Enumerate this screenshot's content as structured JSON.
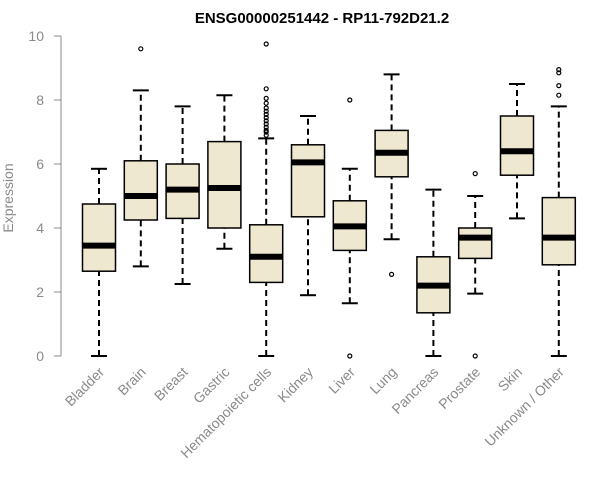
{
  "chart_data": {
    "type": "boxplot",
    "title": "ENSG00000251442 - RP11-792D21.2",
    "xlabel": "",
    "ylabel": "Expression",
    "ylim": [
      0,
      10
    ],
    "yticks": [
      0,
      2,
      4,
      6,
      8,
      10
    ],
    "grid": false,
    "box_fill": "#efe8d0",
    "categories": [
      "Bladder",
      "Brain",
      "Breast",
      "Gastric",
      "Hematopoietic cells",
      "Kidney",
      "Liver",
      "Lung",
      "Pancreas",
      "Prostate",
      "Skin",
      "Unknown / Other"
    ],
    "boxes": [
      {
        "whisker_low": 0.0,
        "q1": 2.65,
        "median": 3.45,
        "q3": 4.75,
        "whisker_high": 5.85,
        "outliers": []
      },
      {
        "whisker_low": 2.8,
        "q1": 4.25,
        "median": 5.0,
        "q3": 6.1,
        "whisker_high": 8.3,
        "outliers": [
          9.6
        ]
      },
      {
        "whisker_low": 2.25,
        "q1": 4.3,
        "median": 5.2,
        "q3": 6.0,
        "whisker_high": 7.8,
        "outliers": []
      },
      {
        "whisker_low": 3.35,
        "q1": 4.0,
        "median": 5.25,
        "q3": 6.7,
        "whisker_high": 8.15,
        "outliers": []
      },
      {
        "whisker_low": 0.0,
        "q1": 2.3,
        "median": 3.1,
        "q3": 4.1,
        "whisker_high": 6.8,
        "outliers": [
          6.9,
          7.0,
          7.05,
          7.15,
          7.25,
          7.35,
          7.45,
          7.55,
          7.65,
          7.75,
          7.9,
          8.05,
          8.35,
          9.75
        ]
      },
      {
        "whisker_low": 1.9,
        "q1": 4.35,
        "median": 6.05,
        "q3": 6.6,
        "whisker_high": 7.5,
        "outliers": []
      },
      {
        "whisker_low": 1.65,
        "q1": 3.3,
        "median": 4.05,
        "q3": 4.85,
        "whisker_high": 5.85,
        "outliers": [
          0.0,
          8.0
        ]
      },
      {
        "whisker_low": 3.65,
        "q1": 5.6,
        "median": 6.35,
        "q3": 7.05,
        "whisker_high": 8.8,
        "outliers": [
          2.55
        ]
      },
      {
        "whisker_low": 0.0,
        "q1": 1.35,
        "median": 2.2,
        "q3": 3.1,
        "whisker_high": 5.2,
        "outliers": []
      },
      {
        "whisker_low": 1.95,
        "q1": 3.05,
        "median": 3.7,
        "q3": 4.0,
        "whisker_high": 5.0,
        "outliers": [
          0.0,
          5.7
        ]
      },
      {
        "whisker_low": 4.3,
        "q1": 5.65,
        "median": 6.4,
        "q3": 7.5,
        "whisker_high": 8.5,
        "outliers": []
      },
      {
        "whisker_low": 0.0,
        "q1": 2.85,
        "median": 3.7,
        "q3": 4.95,
        "whisker_high": 7.8,
        "outliers": [
          8.15,
          8.45,
          8.85,
          8.95
        ]
      }
    ]
  }
}
